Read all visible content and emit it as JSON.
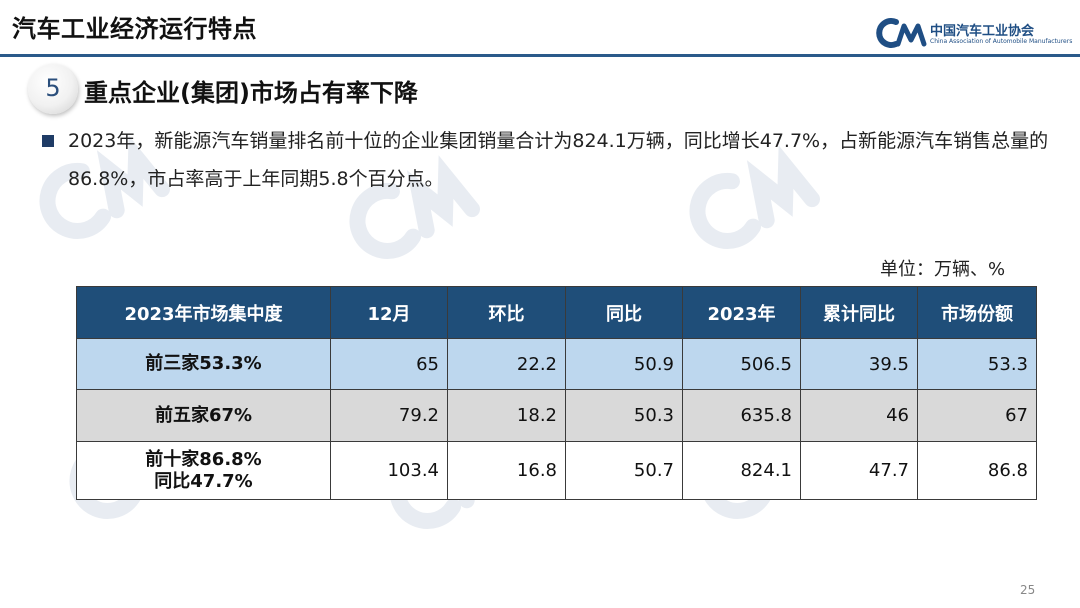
{
  "header": {
    "title": "汽车工业经济运行特点",
    "logo_cn": "中国汽车工业协会",
    "logo_en": "China Association of Automobile Manufacturers"
  },
  "section": {
    "number": "5",
    "title": "重点企业(集团)市场占有率下降"
  },
  "bullet": {
    "text": "2023年，新能源汽车销量排名前十位的企业集团销量合计为824.1万辆，同比增长47.7%，占新能源汽车销售总量的86.8%，市占率高于上年同期5.8个百分点。"
  },
  "table": {
    "unit": "单位：万辆、%",
    "headers": [
      "2023年市场集中度",
      "12月",
      "环比",
      "同比",
      "2023年",
      "累计同比",
      "市场份额"
    ],
    "rows": [
      {
        "label_line1": "前三家53.3%",
        "label_line2": "",
        "values": [
          "65",
          "22.2",
          "50.9",
          "506.5",
          "39.5",
          "53.3"
        ]
      },
      {
        "label_line1": "前五家67%",
        "label_line2": "",
        "values": [
          "79.2",
          "18.2",
          "50.3",
          "635.8",
          "46",
          "67"
        ]
      },
      {
        "label_line1": "前十家86.8%",
        "label_line2": "同比47.7%",
        "values": [
          "103.4",
          "16.8",
          "50.7",
          "824.1",
          "47.7",
          "86.8"
        ]
      }
    ]
  },
  "page_number": "25",
  "colors": {
    "header_bg": "#1f4e79",
    "row1_bg": "#bdd7ee",
    "row2_bg": "#d9d9d9",
    "row3_bg": "#ffffff",
    "accent": "#1f3c66"
  }
}
